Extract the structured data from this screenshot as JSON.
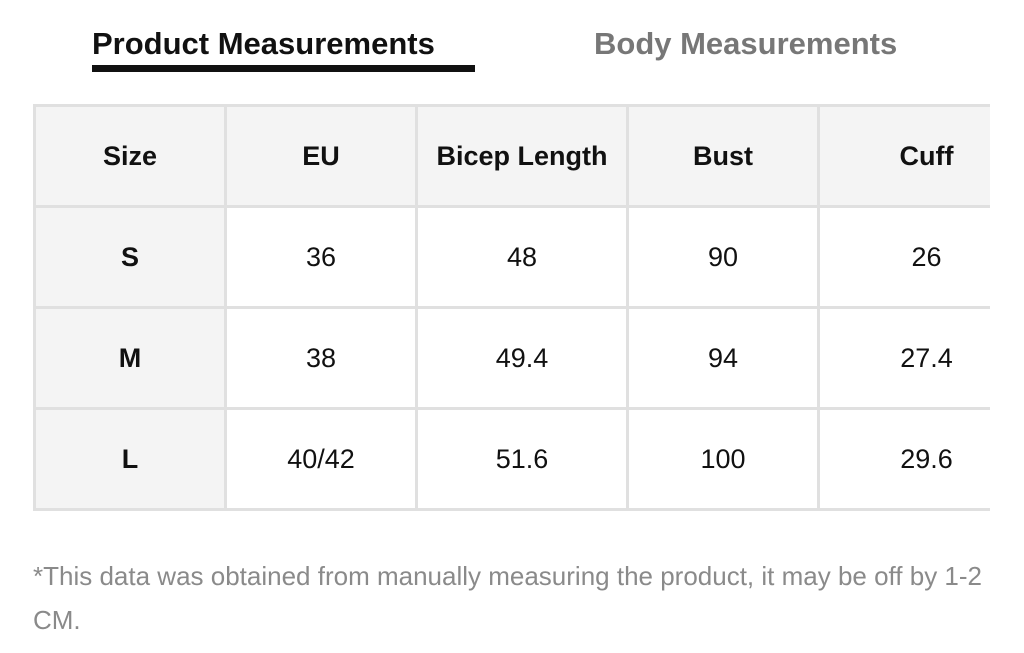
{
  "tabs": [
    "Product Measurements",
    "Body Measurements"
  ],
  "table": {
    "header": [
      "Size",
      "EU",
      "Bicep Length",
      "Bust",
      "Cuff"
    ],
    "rows": [
      [
        "S",
        "36",
        "48",
        "90",
        "26"
      ],
      [
        "M",
        "38",
        "49.4",
        "94",
        "27.4"
      ],
      [
        "L",
        "40/42",
        "51.6",
        "100",
        "29.6"
      ]
    ]
  },
  "note": "*This data was obtained from manually measuring the product, it may be off by 1-2 CM."
}
